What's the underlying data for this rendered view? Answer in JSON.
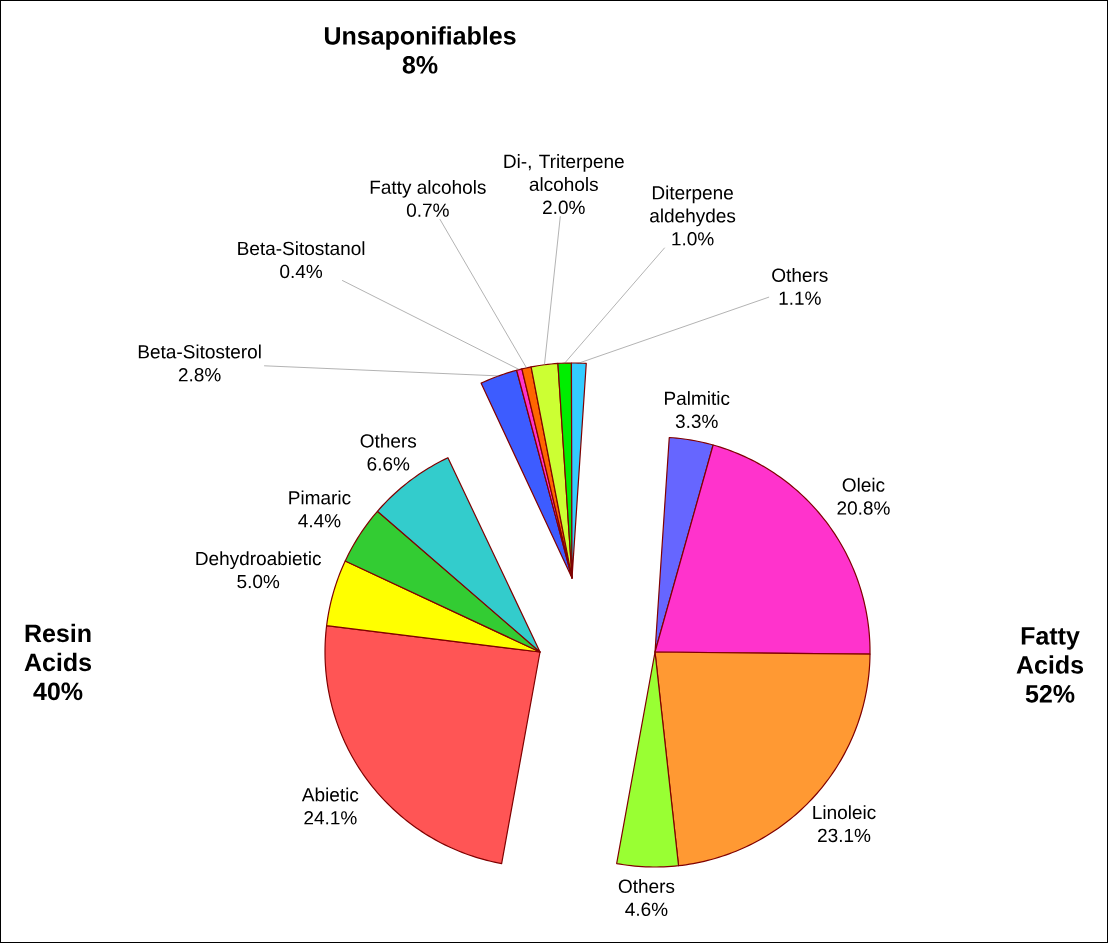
{
  "chart_data": [
    {
      "type": "pie",
      "title": "Unsaponifiables",
      "subtitle": "8%",
      "categories": [
        "Beta-Sitosterol",
        "Beta-Sitostanol",
        "Fatty alcohols",
        "Di-, Triterpene alcohols",
        "Diterpene aldehydes",
        "Others"
      ],
      "values": [
        2.8,
        0.4,
        0.7,
        2.0,
        1.0,
        1.1
      ],
      "value_labels": [
        "2.8%",
        "0.4%",
        "0.7%",
        "2.0%",
        "1.0%",
        "1.1%"
      ],
      "colors": [
        "#3d5cff",
        "#ff33cc",
        "#ff6600",
        "#ccff33",
        "#00ee00",
        "#33ccff"
      ]
    },
    {
      "type": "pie",
      "title": "Fatty Acids",
      "subtitle": "52%",
      "categories": [
        "Palmitic",
        "Oleic",
        "Linoleic",
        "Others"
      ],
      "values": [
        3.3,
        20.8,
        23.1,
        4.6
      ],
      "value_labels": [
        "3.3%",
        "20.8%",
        "23.1%",
        "4.6%"
      ],
      "colors": [
        "#6666ff",
        "#ff33cc",
        "#ff9933",
        "#99ff33"
      ]
    },
    {
      "type": "pie",
      "title": "Resin Acids",
      "subtitle": "40%",
      "categories": [
        "Abietic",
        "Dehydroabietic",
        "Pimaric",
        "Others"
      ],
      "values": [
        24.1,
        5.0,
        4.4,
        6.6
      ],
      "value_labels": [
        "24.1%",
        "5.0%",
        "4.4%",
        "6.6%"
      ],
      "colors": [
        "#ff5555",
        "#ffff00",
        "#33cc33",
        "#33cccc"
      ]
    }
  ]
}
